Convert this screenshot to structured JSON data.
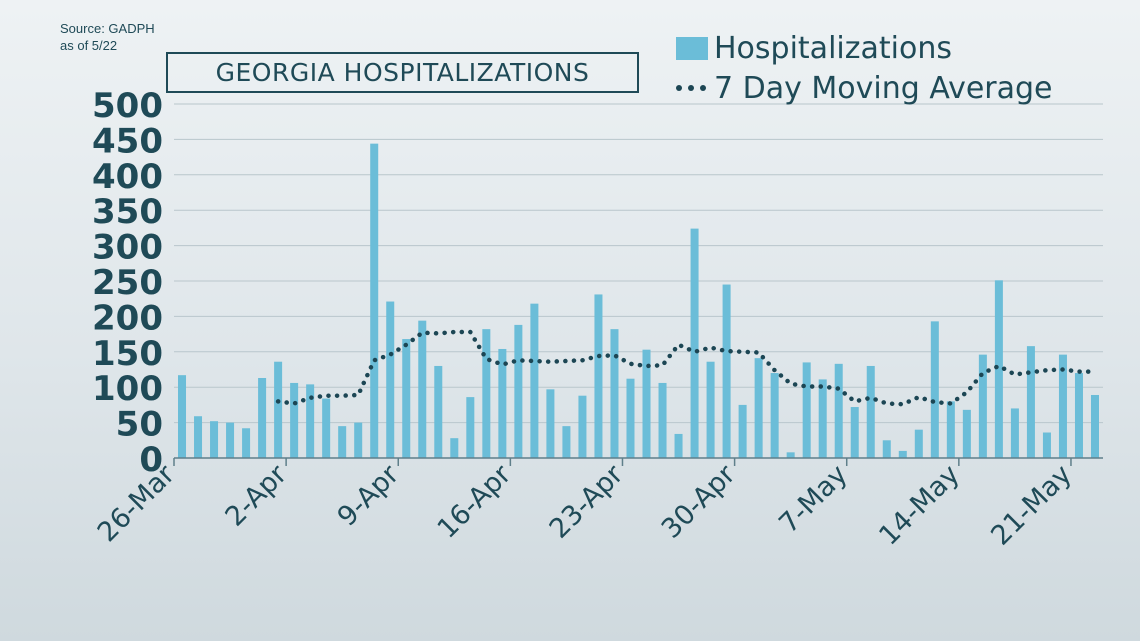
{
  "source": {
    "line1": "Source: GADPH",
    "line2": "as of 5/22"
  },
  "colors": {
    "bar": "#6bbdd8",
    "avg_line": "#1c4654",
    "text": "#1f4a57",
    "grid": "#b9c6cc"
  },
  "chart_data": {
    "type": "bar",
    "title": "GEORGIA HOSPITALIZATIONS",
    "xlabel": "",
    "ylabel": "",
    "ylim": [
      0,
      500
    ],
    "yticks": [
      0,
      50,
      100,
      150,
      200,
      250,
      300,
      350,
      400,
      450,
      500
    ],
    "grid": true,
    "legend_position": "top-right",
    "x_tick_labels": [
      "26-Mar",
      "2-Apr",
      "9-Apr",
      "16-Apr",
      "23-Apr",
      "30-Apr",
      "7-May",
      "14-May",
      "21-May"
    ],
    "categories": [
      "26-Mar",
      "27-Mar",
      "28-Mar",
      "29-Mar",
      "30-Mar",
      "31-Mar",
      "1-Apr",
      "2-Apr",
      "3-Apr",
      "4-Apr",
      "5-Apr",
      "6-Apr",
      "7-Apr",
      "8-Apr",
      "9-Apr",
      "10-Apr",
      "11-Apr",
      "12-Apr",
      "13-Apr",
      "14-Apr",
      "15-Apr",
      "16-Apr",
      "17-Apr",
      "18-Apr",
      "19-Apr",
      "20-Apr",
      "21-Apr",
      "22-Apr",
      "23-Apr",
      "24-Apr",
      "25-Apr",
      "26-Apr",
      "27-Apr",
      "28-Apr",
      "29-Apr",
      "30-Apr",
      "1-May",
      "2-May",
      "3-May",
      "4-May",
      "5-May",
      "6-May",
      "7-May",
      "8-May",
      "9-May",
      "10-May",
      "11-May",
      "12-May",
      "13-May",
      "14-May",
      "15-May",
      "16-May",
      "17-May",
      "18-May",
      "19-May",
      "20-May",
      "21-May",
      "22-May"
    ],
    "series": [
      {
        "name": "Hospitalizations",
        "type": "bar",
        "values": [
          117,
          59,
          52,
          50,
          42,
          113,
          136,
          106,
          104,
          84,
          45,
          50,
          444,
          221,
          168,
          194,
          130,
          28,
          86,
          182,
          154,
          188,
          218,
          97,
          45,
          88,
          231,
          182,
          112,
          153,
          106,
          34,
          324,
          136,
          245,
          75,
          141,
          120,
          8,
          135,
          111,
          133,
          72,
          130,
          25,
          10,
          40,
          193,
          80,
          68,
          146,
          251,
          70,
          158,
          36,
          146,
          120,
          89
        ]
      },
      {
        "name": "7 Day Moving Average",
        "type": "line",
        "style": "dotted",
        "values": [
          null,
          null,
          null,
          null,
          null,
          null,
          80,
          77,
          85,
          88,
          88,
          89,
          138,
          146,
          160,
          177,
          176,
          178,
          178,
          140,
          132,
          138,
          137,
          136,
          137,
          138,
          144,
          145,
          133,
          130,
          131,
          160,
          150,
          156,
          151,
          150,
          149,
          124,
          105,
          101,
          101,
          98,
          80,
          85,
          77,
          76,
          86,
          79,
          77,
          93,
          120,
          130,
          118,
          121,
          124,
          125,
          122,
          122
        ]
      }
    ]
  }
}
